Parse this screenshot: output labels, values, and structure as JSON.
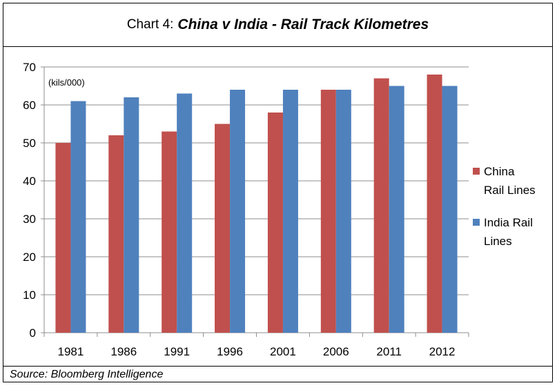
{
  "chart_data": {
    "type": "bar",
    "title_prefix": "Chart 4:",
    "title": "China v India - Rail Track Kilometres",
    "unit_label": "(kils/000)",
    "categories": [
      "1981",
      "1986",
      "1991",
      "1996",
      "2001",
      "2006",
      "2011",
      "2012"
    ],
    "series": [
      {
        "name": [
          "China",
          "Rail Lines"
        ],
        "color": "#c0504d",
        "values": [
          50,
          52,
          53,
          55,
          58,
          64,
          67,
          68
        ]
      },
      {
        "name": [
          "India Rail",
          "Lines"
        ],
        "color": "#4f81bd",
        "values": [
          61,
          62,
          63,
          64,
          64,
          64,
          65,
          65
        ]
      }
    ],
    "ylim": [
      0,
      70
    ],
    "yticks": [
      0,
      10,
      20,
      30,
      40,
      50,
      60,
      70
    ],
    "grid": true,
    "legend_position": "right",
    "source": "Source: Bloomberg Intelligence"
  }
}
